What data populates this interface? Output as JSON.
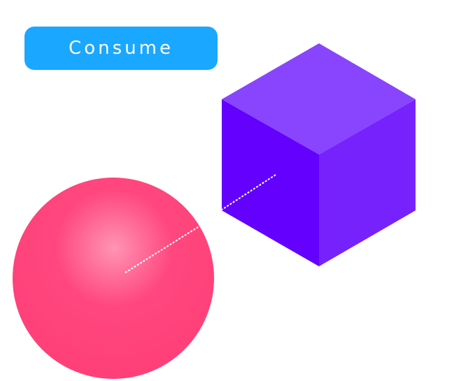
{
  "controls": {
    "consume_label": "Consume"
  },
  "colors": {
    "button": "#1aa7ff",
    "button_text": "#ffffff",
    "cube_top": "#8845fd",
    "cube_left": "#6400fd",
    "cube_right": "#7622fd",
    "sphere_base": "#ff477e",
    "sphere_highlight": "#ff94b4",
    "dashed_line": "#ffffff"
  },
  "objects": {
    "cube": {
      "shape": "cube"
    },
    "sphere": {
      "shape": "sphere"
    }
  }
}
